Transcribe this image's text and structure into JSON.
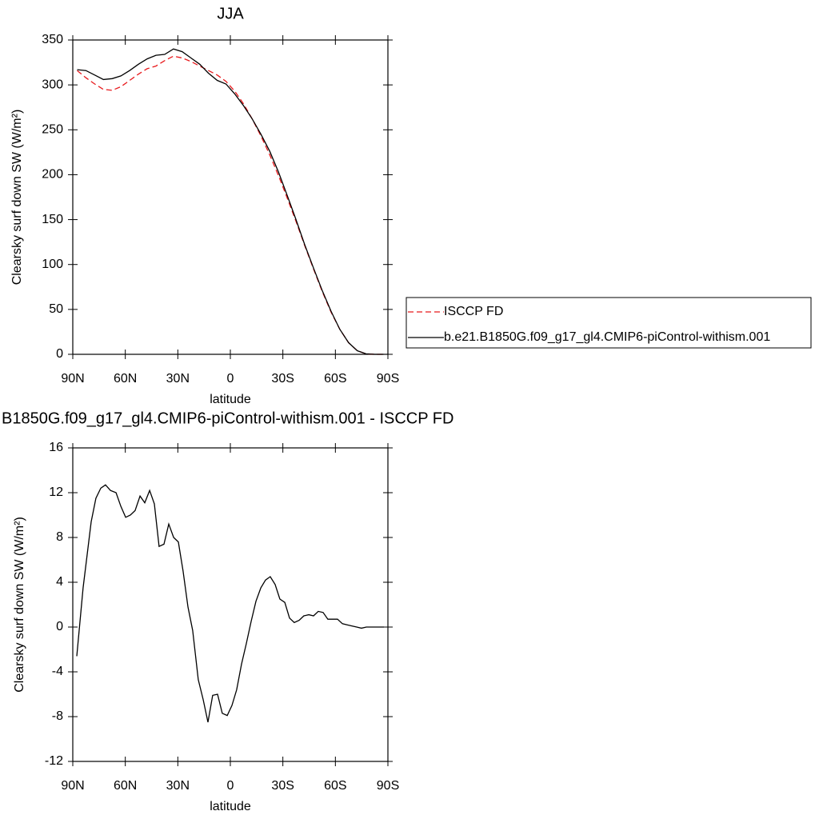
{
  "chart_data": [
    {
      "type": "line",
      "title": "JJA",
      "xlabel": "latitude",
      "ylabel": "Clearsky surf down SW (W/m²)",
      "x": [
        87.5,
        82.5,
        77.5,
        72.5,
        67.5,
        62.5,
        57.5,
        52.5,
        47.5,
        42.5,
        37.5,
        32.5,
        27.5,
        22.5,
        17.5,
        12.5,
        7.5,
        2.5,
        -2.5,
        -7.5,
        -12.5,
        -17.5,
        -22.5,
        -27.5,
        -32.5,
        -37.5,
        -42.5,
        -47.5,
        -52.5,
        -57.5,
        -62.5,
        -67.5,
        -72.5,
        -77.5,
        -82.5,
        -87.5
      ],
      "series": [
        {
          "name": "ISCCP FD",
          "color": "#e8191c",
          "dash": true,
          "values": [
            316,
            308,
            301,
            295,
            294,
            298,
            305,
            312,
            318,
            321,
            327,
            332,
            330,
            326,
            321,
            316,
            311,
            304,
            293,
            279,
            262,
            243,
            222,
            199,
            174,
            148,
            121,
            95,
            70,
            47,
            28,
            13,
            4,
            0.5,
            0,
            0
          ]
        },
        {
          "name": "b.e21.B1850G.f09_g17_gl4.CMIP6-piControl-withism.001",
          "color": "#000000",
          "dash": false,
          "values": [
            317,
            316,
            311,
            306,
            307,
            310,
            316,
            323,
            329,
            333,
            334,
            340,
            337,
            330,
            323,
            313,
            305,
            301,
            290,
            277,
            262,
            245,
            226,
            203,
            177,
            150,
            122,
            96,
            71,
            48,
            28,
            13,
            4,
            0.5,
            0,
            0
          ]
        }
      ],
      "xlim": [
        90,
        -90
      ],
      "xticks": [
        {
          "value": 90,
          "label": "90N"
        },
        {
          "value": 60,
          "label": "60N"
        },
        {
          "value": 30,
          "label": "30N"
        },
        0,
        {
          "value": -30,
          "label": "30S"
        },
        {
          "value": -60,
          "label": "60S"
        },
        {
          "value": -90,
          "label": "90S"
        }
      ],
      "ylim": [
        0,
        350
      ],
      "yticks": [
        0,
        50,
        100,
        150,
        200,
        250,
        300,
        350
      ],
      "legend": "right"
    },
    {
      "type": "line",
      "title": "B1850G.f09_g17_gl4.CMIP6-piControl-withism.001 - ISCCP FD",
      "xlabel": "latitude",
      "ylabel": "Clearsky surf down SW (W/m²)",
      "x": [
        87.7,
        84.1,
        79.5,
        76.8,
        74.0,
        71.3,
        68.5,
        65.3,
        62.6,
        59.8,
        57.1,
        54.4,
        51.6,
        48.9,
        46.1,
        43.4,
        40.7,
        37.9,
        35.2,
        32.4,
        29.7,
        27.0,
        24.2,
        21.5,
        18.3,
        15.5,
        12.8,
        10.1,
        7.3,
        4.6,
        1.8,
        -0.9,
        -3.6,
        -6.4,
        -9.1,
        -11.9,
        -14.6,
        -17.4,
        -20.1,
        -22.8,
        -25.6,
        -28.3,
        -31.1,
        -33.8,
        -36.5,
        -39.3,
        -42.0,
        -44.8,
        -47.5,
        -50.2,
        -53.0,
        -55.7,
        -58.5,
        -61.2,
        -64.0,
        -66.7,
        -69.4,
        -72.2,
        -74.9,
        -77.7,
        -80.4,
        -83.1,
        -87.7
      ],
      "values": [
        -2.6,
        3.5,
        9.4,
        11.5,
        12.4,
        12.7,
        12.2,
        12.0,
        10.8,
        9.8,
        10.0,
        10.4,
        11.7,
        11.1,
        12.2,
        11.0,
        7.2,
        7.4,
        9.2,
        8.0,
        7.6,
        5.0,
        1.8,
        -0.3,
        -4.7,
        -6.5,
        -8.5,
        -6.1,
        -6.0,
        -7.7,
        -7.9,
        -7.0,
        -5.6,
        -3.3,
        -1.5,
        0.5,
        2.3,
        3.5,
        4.2,
        4.5,
        3.8,
        2.5,
        2.2,
        0.8,
        0.4,
        0.6,
        1.0,
        1.1,
        1.0,
        1.4,
        1.3,
        0.7,
        0.7,
        0.7,
        0.3,
        0.2,
        0.1,
        0,
        -0.1,
        0,
        0,
        0,
        0
      ],
      "color": "#000000",
      "xlim": [
        90,
        -90
      ],
      "xticks": [
        {
          "value": 90,
          "label": "90N"
        },
        {
          "value": 60,
          "label": "60N"
        },
        {
          "value": 30,
          "label": "30N"
        },
        0,
        {
          "value": -30,
          "label": "30S"
        },
        {
          "value": -60,
          "label": "60S"
        },
        {
          "value": -90,
          "label": "90S"
        }
      ],
      "ylim": [
        -12,
        16
      ],
      "yticks": [
        -12,
        -8,
        -4,
        0,
        4,
        8,
        12,
        16
      ]
    }
  ]
}
